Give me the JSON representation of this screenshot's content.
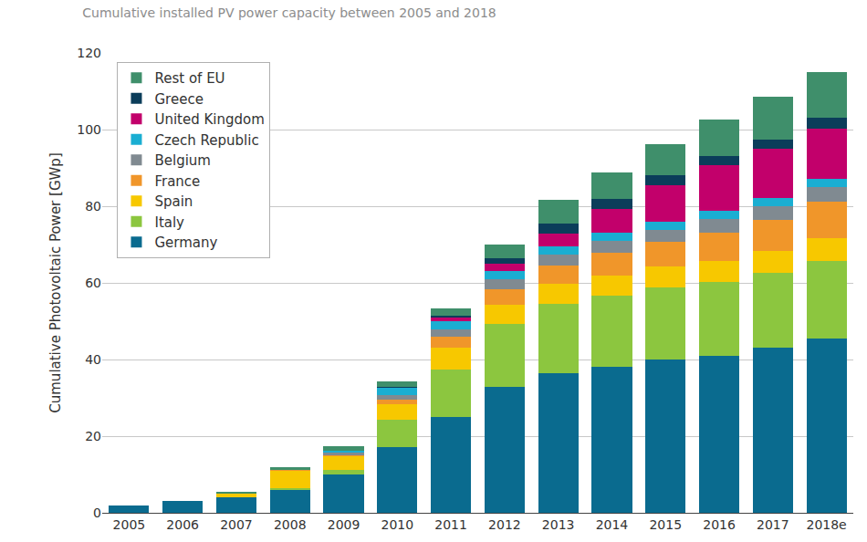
{
  "chart_data": {
    "type": "bar",
    "title": "Cumulative installed PV power capacity between 2005 and 2018",
    "y_label": "Cumulative Photovoltaic Power [GWp]",
    "categories": [
      "2005",
      "2006",
      "2007",
      "2008",
      "2009",
      "2010",
      "2011",
      "2012",
      "2013",
      "2014",
      "2015",
      "2016",
      "2017",
      "2018e"
    ],
    "series": [
      {
        "name": "Germany",
        "color": "#0a6b8f",
        "values": [
          2.0,
          3.0,
          4.0,
          6.0,
          10.0,
          17.2,
          25.0,
          32.8,
          36.5,
          38.1,
          39.9,
          41.0,
          43.0,
          45.5
        ]
      },
      {
        "name": "Italy",
        "color": "#8cc63f",
        "values": [
          0,
          0,
          0.1,
          0.5,
          1.2,
          7.2,
          12.5,
          16.4,
          18.0,
          18.5,
          18.9,
          19.3,
          19.7,
          20.2
        ]
      },
      {
        "name": "Spain",
        "color": "#f7c800",
        "values": [
          0,
          0,
          1.0,
          4.5,
          3.6,
          4.0,
          5.5,
          5.2,
          5.3,
          5.4,
          5.4,
          5.5,
          5.6,
          6.0
        ]
      },
      {
        "name": "France",
        "color": "#f0962a",
        "values": [
          0,
          0,
          0,
          0.1,
          0.3,
          1.2,
          3.0,
          4.0,
          4.7,
          5.8,
          6.5,
          7.4,
          8.2,
          9.5
        ]
      },
      {
        "name": "Belgium",
        "color": "#808a91",
        "values": [
          0,
          0,
          0,
          0.1,
          0.6,
          1.0,
          1.9,
          2.6,
          2.9,
          3.1,
          3.2,
          3.4,
          3.6,
          3.8
        ]
      },
      {
        "name": "Czech Republic",
        "color": "#1aaed2",
        "values": [
          0,
          0,
          0,
          0.1,
          0.5,
          2.0,
          2.0,
          2.1,
          2.1,
          2.1,
          2.1,
          2.1,
          2.1,
          2.2
        ]
      },
      {
        "name": "United Kingdom",
        "color": "#c2006b",
        "values": [
          0,
          0,
          0,
          0,
          0.03,
          0.1,
          1.0,
          1.8,
          3.4,
          6.2,
          9.5,
          11.9,
          12.7,
          13.0
        ]
      },
      {
        "name": "Greece",
        "color": "#0b3d5a",
        "values": [
          0,
          0,
          0,
          0,
          0.05,
          0.2,
          0.6,
          1.5,
          2.6,
          2.6,
          2.6,
          2.6,
          2.6,
          2.8
        ]
      },
      {
        "name": "Rest of EU",
        "color": "#3f8f6b",
        "values": [
          0,
          0,
          0.3,
          0.5,
          1.0,
          1.5,
          1.8,
          3.6,
          6.2,
          7.0,
          8.2,
          9.4,
          11.0,
          12.0
        ]
      }
    ],
    "ylim": [
      0,
      120
    ],
    "yticks": [
      0,
      20,
      40,
      60,
      80,
      100,
      120
    ],
    "grid": true,
    "legend": "upper left",
    "stacked": true
  }
}
